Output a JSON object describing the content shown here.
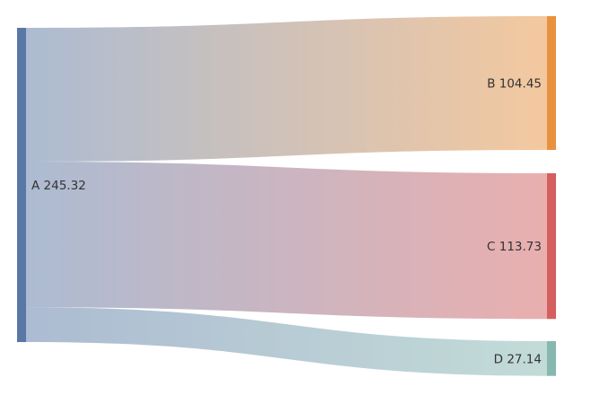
{
  "chart_data": {
    "type": "sankey",
    "nodes": [
      {
        "name": "A",
        "value": 245.32,
        "label": "A 245.32",
        "color": "#5a78a5",
        "column": 0
      },
      {
        "name": "B",
        "value": 104.45,
        "label": "B 104.45",
        "color": "#e8923f",
        "column": 1
      },
      {
        "name": "C",
        "value": 113.73,
        "label": "C 113.73",
        "color": "#d45f5f",
        "column": 1
      },
      {
        "name": "D",
        "value": 27.14,
        "label": "D 27.14",
        "color": "#86b8b0",
        "column": 1
      }
    ],
    "links": [
      {
        "source": "A",
        "target": "B",
        "value": 104.45
      },
      {
        "source": "A",
        "target": "C",
        "value": 113.73
      },
      {
        "source": "A",
        "target": "D",
        "value": 27.14
      }
    ],
    "link_opacity": 0.5
  }
}
